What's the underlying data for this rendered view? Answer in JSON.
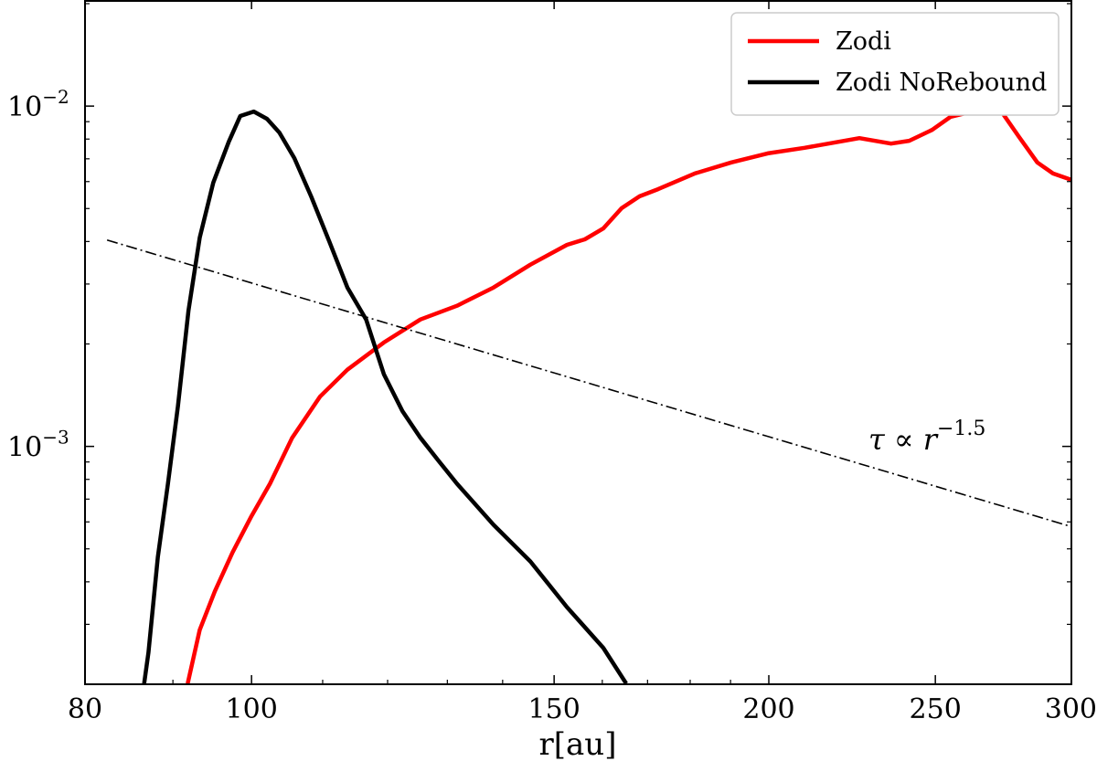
{
  "chart_data": {
    "type": "line",
    "xlabel": "r[au]",
    "ylabel": "",
    "xscale": "log",
    "yscale": "log",
    "xlim": [
      80,
      300
    ],
    "ylim": [
      0.0002,
      0.0205
    ],
    "xticks": [
      80,
      100,
      150,
      200,
      250,
      300
    ],
    "xtick_labels": [
      "80",
      "100",
      "150",
      "200",
      "250",
      "300"
    ],
    "yticks": [
      0.001,
      0.01
    ],
    "ytick_labels": [
      {
        "base": "10",
        "exp": "−3"
      },
      {
        "base": "10",
        "exp": "−2"
      }
    ],
    "grid": false,
    "legend_position": "top-right",
    "series": [
      {
        "name": "Zodi",
        "color": "#ff0000",
        "x": [
          91.8,
          93.3,
          95.2,
          97.5,
          100,
          102.5,
          105.6,
          109.6,
          113.7,
          119.4,
          125.4,
          131.7,
          138.3,
          145.3,
          152.6,
          156.3,
          160.2,
          164.2,
          168.2,
          172.4,
          181.1,
          190.2,
          199.7,
          209.8,
          225.8,
          235.6,
          241.4,
          248.9,
          255.1,
          261.4,
          268.0,
          273.6,
          279.7,
          286.6,
          292.7,
          300
        ],
        "y": [
          0.000201,
          0.000289,
          0.000375,
          0.000489,
          0.000625,
          0.000777,
          0.00106,
          0.0014,
          0.00168,
          0.00202,
          0.00236,
          0.00259,
          0.00293,
          0.00342,
          0.00391,
          0.00406,
          0.00437,
          0.00501,
          0.00543,
          0.0057,
          0.00634,
          0.00683,
          0.00726,
          0.00754,
          0.00805,
          0.00776,
          0.00791,
          0.00851,
          0.00929,
          0.00958,
          0.0097,
          0.00952,
          0.00811,
          0.00683,
          0.00634,
          0.00607
        ]
      },
      {
        "name": "Zodi NoRebound",
        "color": "#000000",
        "x": [
          86.6,
          87.1,
          88.2,
          89.4,
          90.6,
          91.9,
          93.3,
          95.0,
          97.0,
          98.5,
          100.3,
          102.1,
          103.8,
          105.9,
          108.3,
          111.0,
          113.7,
          116.6,
          119.4,
          122.4,
          125.4,
          128.5,
          131.7,
          138.3,
          145.3,
          152.6,
          160.2,
          165.2
        ],
        "y": [
          0.000201,
          0.000248,
          0.000474,
          0.000777,
          0.00131,
          0.00251,
          0.00411,
          0.00596,
          0.00786,
          0.00935,
          0.00964,
          0.00917,
          0.00836,
          0.00703,
          0.00543,
          0.00399,
          0.00293,
          0.00236,
          0.00163,
          0.00127,
          0.00106,
          0.000906,
          0.000777,
          0.000588,
          0.000459,
          0.000337,
          0.000256,
          0.000201
        ]
      }
    ],
    "reference_line": {
      "style": "dash-dot",
      "color": "#000000",
      "slope": -1.5,
      "x": [
        82.4,
        300
      ],
      "y": [
        0.00404,
        0.000581
      ]
    },
    "annotation": {
      "text": "τ ∝ r",
      "exp": "−1.5"
    }
  }
}
